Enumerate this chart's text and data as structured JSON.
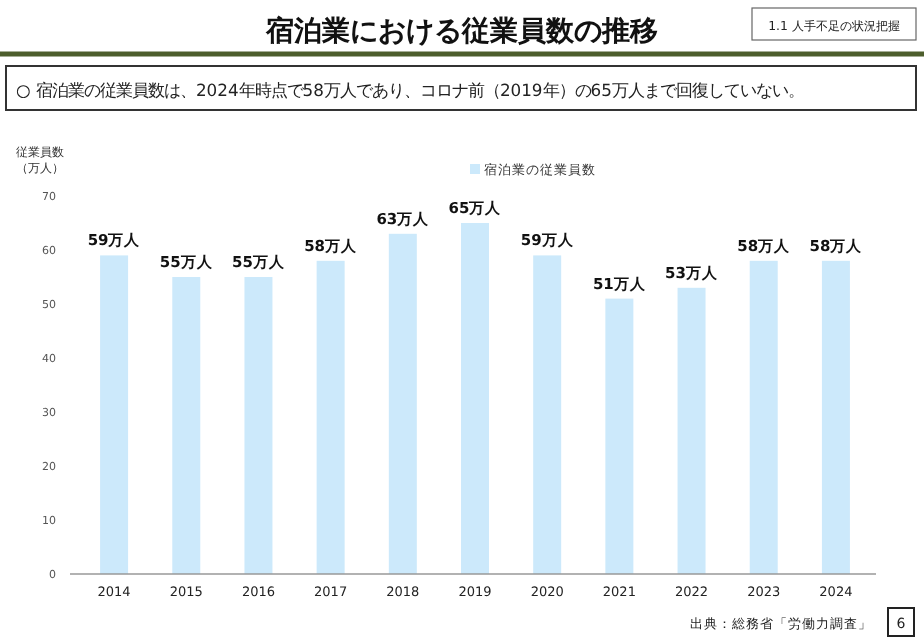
{
  "chart_data": {
    "type": "bar",
    "title": "宿泊業における従業員数の推移",
    "subtitle": "○ 宿泊業の従業員数は、2024年時点で58万人であり、コロナ前（2019年）の65万人まで回復していない。",
    "ylabel": "従業員数（万人）",
    "annotations": [
      "1.1 人手不足の状況把握",
      "出典：総務省「労働力調査」",
      "6"
    ],
    "categories": [
      "2014",
      "2015",
      "2016",
      "2017",
      "2018",
      "2019",
      "2020",
      "2021",
      "2022",
      "2023",
      "2024"
    ],
    "series": [
      {
        "name": "宿泊業の従業員数",
        "color": "#cce9fb",
        "values": [
          59,
          55,
          55,
          58,
          63,
          65,
          59,
          51,
          53,
          58,
          58
        ],
        "value_labels": [
          "59万人",
          "55万人",
          "55万人",
          "58万人",
          "63万人",
          "65万人",
          "59万人",
          "51万人",
          "53万人",
          "58万人",
          "58万人"
        ]
      }
    ],
    "ylim": [
      0,
      70
    ],
    "yticks": [
      0,
      10,
      20,
      30,
      40,
      50,
      60,
      70
    ],
    "legend": "top",
    "grid": false
  }
}
